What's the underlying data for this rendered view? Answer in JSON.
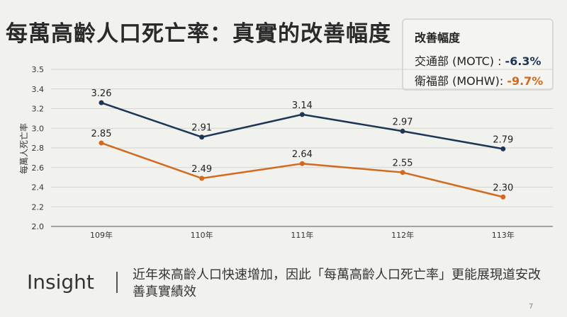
{
  "title": "每萬高齡人口死亡率：真實的改善幅度",
  "summary_box": {
    "heading": "改善幅度",
    "rows": [
      {
        "label": "交通部 (MOTC) : ",
        "value": "-6.3%",
        "color": "#1d3557"
      },
      {
        "label": "衛福部 (MOHW): ",
        "value": "-9.7%",
        "color": "#d2691e"
      }
    ]
  },
  "chart_data": {
    "type": "line",
    "title": "",
    "xlabel": "",
    "ylabel": "每萬人死亡率",
    "categories": [
      "109年",
      "110年",
      "111年",
      "112年",
      "113年"
    ],
    "y_tick_labels": [
      "2.0",
      "2.2",
      "2.4",
      "2.6",
      "2.8",
      "3.0",
      "3.2",
      "3.4",
      "3.5"
    ],
    "ylim": [
      2.0,
      3.6
    ],
    "grid": true,
    "series": [
      {
        "values": [
          3.26,
          2.91,
          3.14,
          2.97,
          2.79
        ],
        "labels": [
          "3.26",
          "2.91",
          "3.14",
          "2.97",
          "2.79"
        ],
        "color": "#1d3557"
      },
      {
        "values": [
          2.85,
          2.49,
          2.64,
          2.55,
          2.3
        ],
        "labels": [
          "2.85",
          "2.49",
          "2.64",
          "2.55",
          "2.30"
        ],
        "color": "#d2691e"
      }
    ]
  },
  "insight": {
    "label": "Insight",
    "text": "近年來高齡人口快速增加，因此「每萬高齡人口死亡率」更能展現道安改善真實績效"
  },
  "page_number": "7"
}
